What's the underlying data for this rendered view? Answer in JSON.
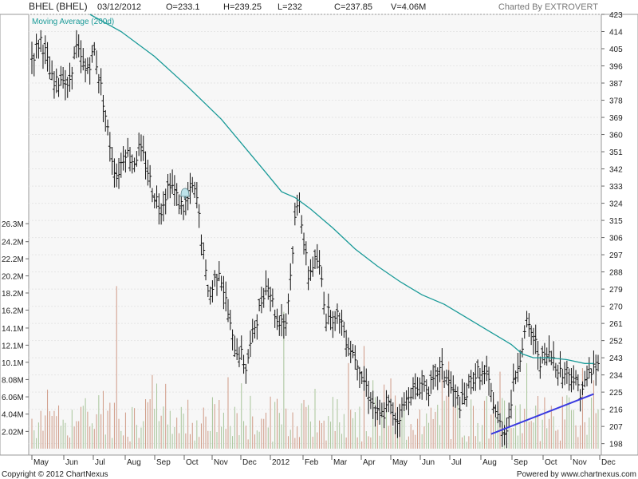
{
  "header": {
    "symbol": "BHEL (BHEL)",
    "date": "03/12/2012",
    "open": "O=233.1",
    "high": "H=239.25",
    "low": "L=232",
    "close": "C=237.85",
    "volume": "V=4.06M",
    "charted_by": "Charted By EXTROVERT"
  },
  "footer": {
    "copyright": "Copyright © 2012 ChartNexus",
    "powered": "Powered by www.chartnexus.com"
  },
  "chart_data": {
    "type": "ohlc",
    "legend": "Moving Average (200d)",
    "price_ticks": [
      198,
      207,
      216,
      225,
      234,
      243,
      252,
      261,
      270,
      279,
      288,
      297,
      306,
      315,
      324,
      333,
      342,
      351,
      360,
      369,
      378,
      387,
      396,
      405,
      414,
      423
    ],
    "volume_ticks": [
      "2.02M",
      "4.04M",
      "6.06M",
      "8.08M",
      "10.1M",
      "12.1M",
      "14.1M",
      "16.2M",
      "18.2M",
      "20.2M",
      "22.2M",
      "24.2M",
      "26.3M"
    ],
    "x_labels": [
      "May",
      "Jun",
      "Jul",
      "Aug",
      "Sep",
      "Oct",
      "Nov",
      "Dec",
      "2012",
      "Feb",
      "Mar",
      "Apr",
      "May",
      "Jun",
      "Jul",
      "Aug",
      "Sep",
      "Oct",
      "Nov",
      "Dec"
    ],
    "price_ylim": [
      192,
      423
    ],
    "volume_ylim": [
      0,
      28
    ],
    "price_path": [
      [
        0,
        400
      ],
      [
        2,
        405
      ],
      [
        4,
        410
      ],
      [
        6,
        403
      ],
      [
        8,
        392
      ],
      [
        10,
        385
      ],
      [
        12,
        388
      ],
      [
        14,
        392
      ],
      [
        16,
        383
      ],
      [
        18,
        396
      ],
      [
        20,
        405
      ],
      [
        22,
        399
      ],
      [
        24,
        393
      ],
      [
        26,
        398
      ],
      [
        28,
        404
      ],
      [
        30,
        391
      ],
      [
        32,
        378
      ],
      [
        34,
        362
      ],
      [
        36,
        348
      ],
      [
        38,
        338
      ],
      [
        40,
        345
      ],
      [
        42,
        352
      ],
      [
        44,
        348
      ],
      [
        46,
        346
      ],
      [
        48,
        352
      ],
      [
        50,
        348
      ],
      [
        52,
        341
      ],
      [
        54,
        331
      ],
      [
        56,
        326
      ],
      [
        58,
        322
      ],
      [
        60,
        329
      ],
      [
        62,
        336
      ],
      [
        64,
        330
      ],
      [
        66,
        324
      ],
      [
        68,
        322
      ],
      [
        70,
        326
      ],
      [
        72,
        332
      ],
      [
        74,
        326
      ],
      [
        76,
        306
      ],
      [
        78,
        286
      ],
      [
        80,
        275
      ],
      [
        82,
        284
      ],
      [
        84,
        290
      ],
      [
        86,
        279
      ],
      [
        88,
        266
      ],
      [
        90,
        252
      ],
      [
        92,
        247
      ],
      [
        94,
        244
      ],
      [
        96,
        238
      ],
      [
        98,
        249
      ],
      [
        100,
        260
      ],
      [
        102,
        268
      ],
      [
        104,
        278
      ],
      [
        106,
        283
      ],
      [
        108,
        272
      ],
      [
        110,
        262
      ],
      [
        112,
        264
      ],
      [
        114,
        262
      ],
      [
        116,
        286
      ],
      [
        118,
        315
      ],
      [
        120,
        328
      ],
      [
        122,
        303
      ],
      [
        124,
        286
      ],
      [
        126,
        292
      ],
      [
        128,
        294
      ],
      [
        130,
        284
      ],
      [
        132,
        264
      ],
      [
        134,
        268
      ],
      [
        136,
        262
      ],
      [
        138,
        266
      ],
      [
        140,
        257
      ],
      [
        142,
        250
      ],
      [
        144,
        246
      ],
      [
        146,
        242
      ],
      [
        148,
        234
      ],
      [
        150,
        228
      ],
      [
        152,
        222
      ],
      [
        154,
        215
      ],
      [
        156,
        212
      ],
      [
        158,
        214
      ],
      [
        160,
        218
      ],
      [
        162,
        214
      ],
      [
        164,
        211
      ],
      [
        166,
        216
      ],
      [
        168,
        220
      ],
      [
        170,
        226
      ],
      [
        172,
        225
      ],
      [
        174,
        228
      ],
      [
        176,
        230
      ],
      [
        178,
        227
      ],
      [
        180,
        229
      ],
      [
        182,
        236
      ],
      [
        184,
        236
      ],
      [
        186,
        233
      ],
      [
        188,
        227
      ],
      [
        190,
        223
      ],
      [
        192,
        219
      ],
      [
        194,
        221
      ],
      [
        196,
        227
      ],
      [
        198,
        233
      ],
      [
        200,
        235
      ],
      [
        202,
        234
      ],
      [
        204,
        233
      ],
      [
        206,
        224
      ],
      [
        208,
        215
      ],
      [
        210,
        208
      ],
      [
        212,
        204
      ],
      [
        214,
        212
      ],
      [
        216,
        228
      ],
      [
        218,
        240
      ],
      [
        220,
        250
      ],
      [
        222,
        260
      ],
      [
        224,
        256
      ],
      [
        226,
        250
      ],
      [
        228,
        242
      ],
      [
        230,
        243
      ],
      [
        232,
        244
      ],
      [
        234,
        243
      ],
      [
        236,
        238
      ],
      [
        238,
        234
      ],
      [
        240,
        236
      ],
      [
        242,
        234
      ],
      [
        244,
        230
      ],
      [
        246,
        226
      ],
      [
        248,
        229
      ],
      [
        250,
        234
      ],
      [
        252,
        238
      ]
    ],
    "ma_path": [
      [
        26,
        423
      ],
      [
        40,
        414
      ],
      [
        55,
        401
      ],
      [
        70,
        385
      ],
      [
        85,
        368
      ],
      [
        95,
        354
      ],
      [
        105,
        340
      ],
      [
        112,
        330
      ],
      [
        118,
        327
      ],
      [
        125,
        321
      ],
      [
        135,
        311
      ],
      [
        145,
        300
      ],
      [
        155,
        291
      ],
      [
        165,
        283
      ],
      [
        175,
        276
      ],
      [
        185,
        271
      ],
      [
        195,
        264
      ],
      [
        205,
        257
      ],
      [
        215,
        250
      ],
      [
        220,
        245
      ],
      [
        225,
        243
      ],
      [
        232,
        243
      ],
      [
        240,
        242
      ],
      [
        248,
        240
      ],
      [
        252,
        240
      ]
    ],
    "trendline": [
      [
        206,
        203
      ],
      [
        252,
        224
      ]
    ],
    "volume_spikes": [
      [
        38,
        19
      ],
      [
        113,
        16
      ],
      [
        127,
        7
      ],
      [
        142,
        10
      ],
      [
        149,
        12
      ],
      [
        153,
        8
      ],
      [
        210,
        9
      ],
      [
        222,
        10
      ],
      [
        230,
        6
      ],
      [
        241,
        6
      ],
      [
        252,
        8
      ]
    ],
    "annotations": [
      "bell-alert-icon"
    ]
  }
}
